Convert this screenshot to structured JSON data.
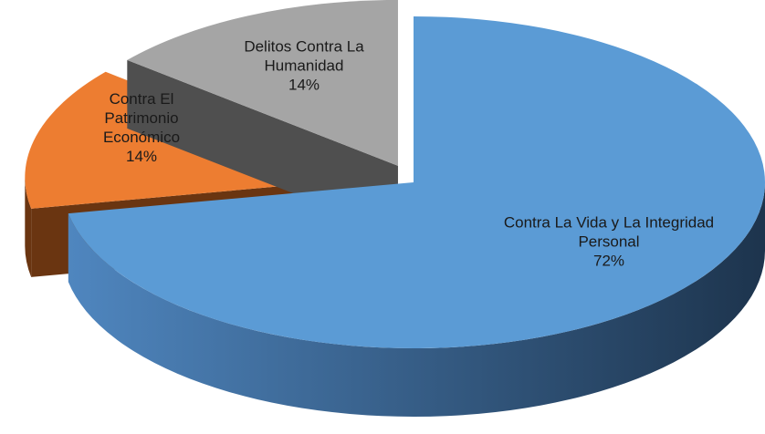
{
  "chart_data": {
    "type": "pie3d",
    "categories": [
      "Contra La Vida y La Integridad Personal",
      "Contra El Patrimonio Económico",
      "Delitos Contra La Humanidad"
    ],
    "values": [
      72,
      14,
      14
    ],
    "value_labels": [
      "72%",
      "14%",
      "14%"
    ],
    "colors": [
      "#5b9bd5",
      "#ed7d31",
      "#a5a5a5"
    ]
  }
}
